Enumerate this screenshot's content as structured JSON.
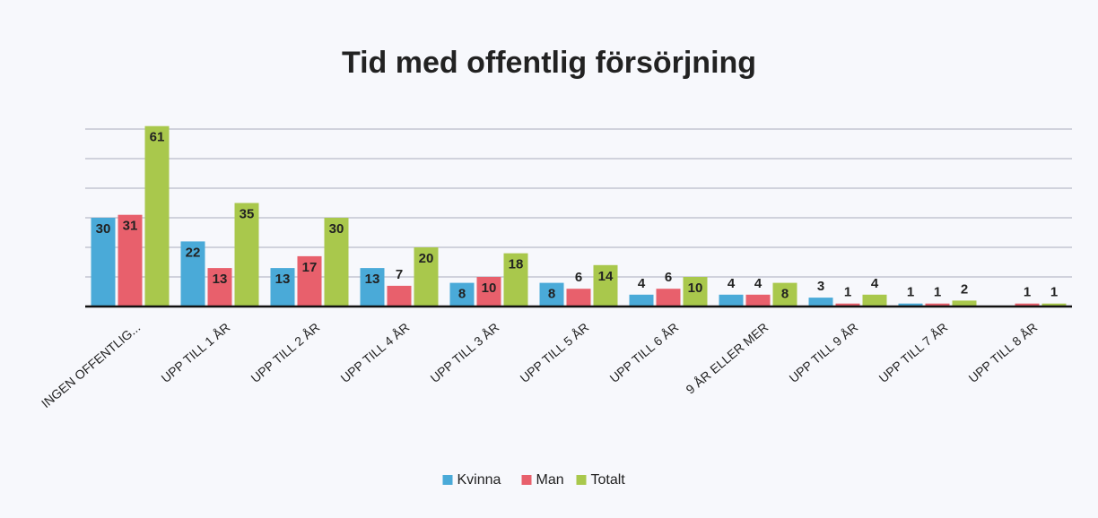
{
  "chart_data": {
    "type": "bar",
    "title": "Tid med offentlig försörjning",
    "categories": [
      "INGEN OFFENTLIG...",
      "UPP TILL 1 ÅR",
      "UPP TILL 2 ÅR",
      "UPP TILL 4 ÅR",
      "UPP TILL 3 ÅR",
      "UPP TILL 5 ÅR",
      "UPP TILL 6 ÅR",
      "9 ÅR ELLER MER",
      "UPP TILL 9 ÅR",
      "UPP TILL 7 ÅR",
      "UPP TILL 8 ÅR"
    ],
    "series": [
      {
        "name": "Kvinna",
        "color": "#4aaad8",
        "values": [
          30,
          22,
          13,
          13,
          8,
          8,
          4,
          4,
          3,
          1,
          null
        ]
      },
      {
        "name": "Man",
        "color": "#e8606c",
        "values": [
          31,
          13,
          17,
          7,
          10,
          6,
          6,
          4,
          1,
          1,
          1
        ]
      },
      {
        "name": "Totalt",
        "color": "#a9c84c",
        "values": [
          61,
          35,
          30,
          20,
          18,
          14,
          10,
          8,
          4,
          2,
          1
        ]
      }
    ],
    "ylim": [
      0,
      70
    ],
    "yticks": [
      0,
      10,
      20,
      30,
      40,
      50,
      60
    ],
    "grid": true,
    "legend": "bottom"
  }
}
